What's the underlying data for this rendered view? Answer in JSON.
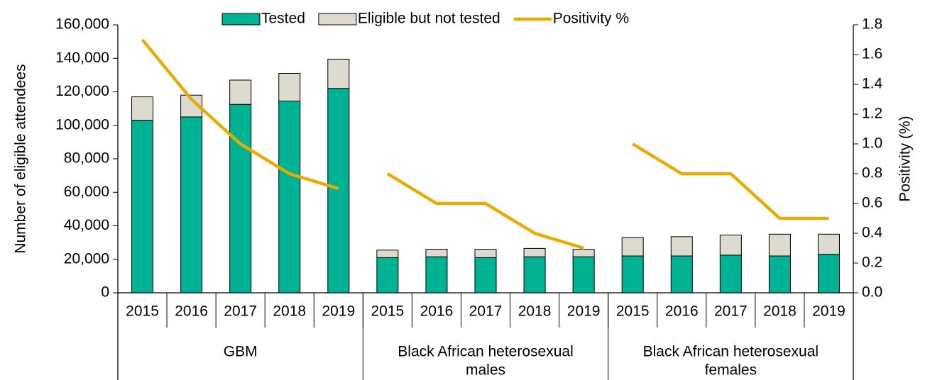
{
  "chart_data": {
    "type": "stacked_bar_line",
    "y_label": "Number of eligible attendees",
    "y2_label": "Positivity (%)",
    "categories": [
      "2015",
      "2016",
      "2017",
      "2018",
      "2019",
      "2015",
      "2016",
      "2017",
      "2018",
      "2019",
      "2015",
      "2016",
      "2017",
      "2018",
      "2019"
    ],
    "groups": [
      {
        "lines": [
          "GBM"
        ],
        "size": 5
      },
      {
        "lines": [
          "Black African heterosexual",
          "males"
        ],
        "size": 5
      },
      {
        "lines": [
          "Black African heterosexual",
          "females"
        ],
        "size": 5
      }
    ],
    "series": [
      {
        "name": "Tested",
        "color": "#00b294",
        "values": [
          103000,
          105000,
          112500,
          114500,
          122000,
          21000,
          21500,
          21000,
          21500,
          21500,
          22000,
          22000,
          22500,
          22000,
          23000
        ]
      },
      {
        "name": "Eligible but not tested",
        "color": "#dddbd0",
        "values": [
          14000,
          13000,
          14500,
          16500,
          17500,
          4500,
          4500,
          5000,
          5000,
          4500,
          11000,
          11500,
          12000,
          13000,
          12000
        ]
      },
      {
        "name": "Positivity %",
        "color": "#e6ac00",
        "axis": "y2",
        "values": [
          1.7,
          1.3,
          1.0,
          0.8,
          0.7,
          0.8,
          0.6,
          0.6,
          0.4,
          0.3,
          1.0,
          0.8,
          0.8,
          0.5,
          0.5
        ]
      }
    ],
    "ylim": [
      0,
      160000
    ],
    "yticks": [
      {
        "value": 0,
        "label": "0"
      },
      {
        "value": 20000,
        "label": "20,000"
      },
      {
        "value": 40000,
        "label": "40,000"
      },
      {
        "value": 60000,
        "label": "60,000"
      },
      {
        "value": 80000,
        "label": "80,000"
      },
      {
        "value": 100000,
        "label": "100,000"
      },
      {
        "value": 120000,
        "label": "120,000"
      },
      {
        "value": 140000,
        "label": "140,000"
      },
      {
        "value": 160000,
        "label": "160,000"
      }
    ],
    "y2lim": [
      0,
      1.8
    ],
    "y2ticks": [
      {
        "value": 0,
        "label": "0.0"
      },
      0.2,
      0.4,
      0.6,
      0.8,
      {
        "value": 1,
        "label": "1.0"
      },
      1.2,
      1.4,
      1.6,
      1.8
    ],
    "legend": "top"
  }
}
